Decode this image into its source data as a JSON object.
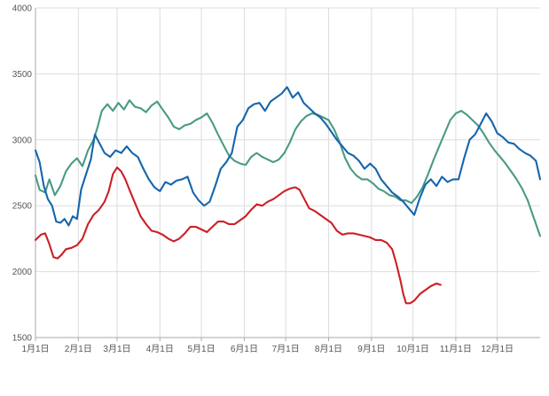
{
  "chart_data": {
    "type": "line",
    "title": "",
    "xlabel": "",
    "ylabel": "",
    "xlim": [
      0,
      365
    ],
    "ylim": [
      1500,
      4000
    ],
    "y_ticks": [
      1500,
      2000,
      2500,
      3000,
      3500,
      4000
    ],
    "y_tick_labels": [
      "1500",
      "2000",
      "2500",
      "3000",
      "3500",
      "4000"
    ],
    "x_ticks": [
      0,
      31,
      59,
      90,
      120,
      151,
      181,
      212,
      243,
      273,
      304,
      334
    ],
    "x_tick_labels": [
      "1月1日",
      "2月1日",
      "3月1日",
      "4月1日",
      "5月1日",
      "6月1日",
      "7月1日",
      "8月1日",
      "9月1日",
      "10月1日",
      "11月1日",
      "12月1日"
    ],
    "grid": true,
    "legend": "none",
    "series": [
      {
        "color": "#4a9a85",
        "points": [
          [
            0,
            2730
          ],
          [
            3,
            2620
          ],
          [
            7,
            2600
          ],
          [
            10,
            2700
          ],
          [
            14,
            2580
          ],
          [
            18,
            2650
          ],
          [
            22,
            2760
          ],
          [
            26,
            2820
          ],
          [
            30,
            2860
          ],
          [
            34,
            2800
          ],
          [
            38,
            2920
          ],
          [
            42,
            3000
          ],
          [
            45,
            3100
          ],
          [
            48,
            3220
          ],
          [
            52,
            3270
          ],
          [
            56,
            3220
          ],
          [
            60,
            3280
          ],
          [
            64,
            3230
          ],
          [
            68,
            3300
          ],
          [
            72,
            3250
          ],
          [
            76,
            3240
          ],
          [
            80,
            3210
          ],
          [
            84,
            3260
          ],
          [
            88,
            3290
          ],
          [
            92,
            3230
          ],
          [
            96,
            3170
          ],
          [
            100,
            3100
          ],
          [
            104,
            3080
          ],
          [
            108,
            3110
          ],
          [
            112,
            3120
          ],
          [
            116,
            3150
          ],
          [
            120,
            3170
          ],
          [
            124,
            3200
          ],
          [
            128,
            3130
          ],
          [
            132,
            3040
          ],
          [
            136,
            2960
          ],
          [
            140,
            2880
          ],
          [
            144,
            2840
          ],
          [
            148,
            2820
          ],
          [
            152,
            2810
          ],
          [
            156,
            2870
          ],
          [
            160,
            2900
          ],
          [
            164,
            2870
          ],
          [
            168,
            2850
          ],
          [
            172,
            2830
          ],
          [
            176,
            2850
          ],
          [
            180,
            2900
          ],
          [
            184,
            2980
          ],
          [
            188,
            3080
          ],
          [
            192,
            3140
          ],
          [
            196,
            3180
          ],
          [
            200,
            3200
          ],
          [
            204,
            3190
          ],
          [
            208,
            3170
          ],
          [
            212,
            3150
          ],
          [
            216,
            3080
          ],
          [
            220,
            2980
          ],
          [
            224,
            2860
          ],
          [
            228,
            2780
          ],
          [
            232,
            2730
          ],
          [
            236,
            2700
          ],
          [
            240,
            2700
          ],
          [
            244,
            2670
          ],
          [
            248,
            2630
          ],
          [
            252,
            2610
          ],
          [
            256,
            2580
          ],
          [
            260,
            2570
          ],
          [
            264,
            2540
          ],
          [
            268,
            2540
          ],
          [
            272,
            2520
          ],
          [
            276,
            2570
          ],
          [
            280,
            2640
          ],
          [
            284,
            2740
          ],
          [
            288,
            2850
          ],
          [
            292,
            2950
          ],
          [
            296,
            3050
          ],
          [
            300,
            3150
          ],
          [
            304,
            3200
          ],
          [
            308,
            3220
          ],
          [
            312,
            3190
          ],
          [
            316,
            3150
          ],
          [
            320,
            3110
          ],
          [
            324,
            3050
          ],
          [
            328,
            2980
          ],
          [
            332,
            2920
          ],
          [
            336,
            2870
          ],
          [
            340,
            2820
          ],
          [
            344,
            2760
          ],
          [
            348,
            2700
          ],
          [
            352,
            2630
          ],
          [
            356,
            2540
          ],
          [
            360,
            2420
          ],
          [
            365,
            2270
          ]
        ]
      },
      {
        "color": "#1565ad",
        "points": [
          [
            0,
            2920
          ],
          [
            3,
            2830
          ],
          [
            6,
            2650
          ],
          [
            9,
            2550
          ],
          [
            12,
            2500
          ],
          [
            15,
            2380
          ],
          [
            18,
            2370
          ],
          [
            21,
            2400
          ],
          [
            24,
            2350
          ],
          [
            27,
            2420
          ],
          [
            30,
            2400
          ],
          [
            33,
            2620
          ],
          [
            36,
            2720
          ],
          [
            40,
            2850
          ],
          [
            43,
            3040
          ],
          [
            46,
            2980
          ],
          [
            50,
            2900
          ],
          [
            54,
            2870
          ],
          [
            58,
            2920
          ],
          [
            62,
            2900
          ],
          [
            66,
            2950
          ],
          [
            70,
            2900
          ],
          [
            74,
            2870
          ],
          [
            78,
            2780
          ],
          [
            82,
            2700
          ],
          [
            86,
            2640
          ],
          [
            90,
            2610
          ],
          [
            94,
            2680
          ],
          [
            98,
            2660
          ],
          [
            102,
            2690
          ],
          [
            106,
            2700
          ],
          [
            110,
            2720
          ],
          [
            114,
            2600
          ],
          [
            118,
            2540
          ],
          [
            122,
            2500
          ],
          [
            126,
            2530
          ],
          [
            130,
            2650
          ],
          [
            134,
            2780
          ],
          [
            138,
            2830
          ],
          [
            142,
            2900
          ],
          [
            146,
            3100
          ],
          [
            150,
            3150
          ],
          [
            154,
            3240
          ],
          [
            158,
            3270
          ],
          [
            162,
            3280
          ],
          [
            166,
            3220
          ],
          [
            170,
            3290
          ],
          [
            174,
            3320
          ],
          [
            178,
            3350
          ],
          [
            182,
            3400
          ],
          [
            186,
            3320
          ],
          [
            190,
            3360
          ],
          [
            194,
            3280
          ],
          [
            198,
            3240
          ],
          [
            202,
            3200
          ],
          [
            206,
            3170
          ],
          [
            210,
            3120
          ],
          [
            214,
            3060
          ],
          [
            218,
            3000
          ],
          [
            222,
            2950
          ],
          [
            226,
            2900
          ],
          [
            230,
            2880
          ],
          [
            234,
            2840
          ],
          [
            238,
            2780
          ],
          [
            242,
            2820
          ],
          [
            246,
            2780
          ],
          [
            250,
            2700
          ],
          [
            254,
            2650
          ],
          [
            258,
            2600
          ],
          [
            262,
            2570
          ],
          [
            266,
            2530
          ],
          [
            270,
            2480
          ],
          [
            274,
            2430
          ],
          [
            278,
            2560
          ],
          [
            282,
            2660
          ],
          [
            286,
            2700
          ],
          [
            290,
            2650
          ],
          [
            294,
            2720
          ],
          [
            298,
            2680
          ],
          [
            302,
            2700
          ],
          [
            306,
            2700
          ],
          [
            310,
            2860
          ],
          [
            314,
            3000
          ],
          [
            318,
            3040
          ],
          [
            322,
            3120
          ],
          [
            326,
            3200
          ],
          [
            330,
            3140
          ],
          [
            334,
            3050
          ],
          [
            338,
            3020
          ],
          [
            342,
            2980
          ],
          [
            346,
            2970
          ],
          [
            350,
            2930
          ],
          [
            354,
            2900
          ],
          [
            358,
            2880
          ],
          [
            362,
            2840
          ],
          [
            365,
            2700
          ]
        ]
      },
      {
        "color": "#cc1f26",
        "points": [
          [
            0,
            2240
          ],
          [
            4,
            2280
          ],
          [
            7,
            2290
          ],
          [
            10,
            2210
          ],
          [
            13,
            2110
          ],
          [
            16,
            2100
          ],
          [
            19,
            2130
          ],
          [
            22,
            2170
          ],
          [
            26,
            2180
          ],
          [
            30,
            2200
          ],
          [
            34,
            2250
          ],
          [
            38,
            2360
          ],
          [
            42,
            2430
          ],
          [
            46,
            2470
          ],
          [
            50,
            2530
          ],
          [
            53,
            2610
          ],
          [
            56,
            2740
          ],
          [
            59,
            2790
          ],
          [
            62,
            2760
          ],
          [
            65,
            2700
          ],
          [
            68,
            2620
          ],
          [
            72,
            2520
          ],
          [
            76,
            2420
          ],
          [
            80,
            2360
          ],
          [
            84,
            2310
          ],
          [
            88,
            2300
          ],
          [
            92,
            2280
          ],
          [
            96,
            2250
          ],
          [
            100,
            2230
          ],
          [
            104,
            2250
          ],
          [
            108,
            2290
          ],
          [
            112,
            2340
          ],
          [
            116,
            2340
          ],
          [
            120,
            2320
          ],
          [
            124,
            2300
          ],
          [
            128,
            2340
          ],
          [
            132,
            2380
          ],
          [
            136,
            2380
          ],
          [
            140,
            2360
          ],
          [
            144,
            2360
          ],
          [
            148,
            2390
          ],
          [
            152,
            2420
          ],
          [
            156,
            2470
          ],
          [
            160,
            2510
          ],
          [
            164,
            2500
          ],
          [
            168,
            2530
          ],
          [
            172,
            2550
          ],
          [
            176,
            2580
          ],
          [
            180,
            2610
          ],
          [
            184,
            2630
          ],
          [
            188,
            2640
          ],
          [
            191,
            2620
          ],
          [
            194,
            2560
          ],
          [
            198,
            2480
          ],
          [
            202,
            2460
          ],
          [
            206,
            2430
          ],
          [
            210,
            2400
          ],
          [
            214,
            2370
          ],
          [
            218,
            2310
          ],
          [
            222,
            2280
          ],
          [
            226,
            2290
          ],
          [
            230,
            2290
          ],
          [
            234,
            2280
          ],
          [
            238,
            2270
          ],
          [
            242,
            2260
          ],
          [
            246,
            2240
          ],
          [
            250,
            2240
          ],
          [
            254,
            2220
          ],
          [
            258,
            2170
          ],
          [
            261,
            2060
          ],
          [
            264,
            1930
          ],
          [
            266,
            1830
          ],
          [
            268,
            1760
          ],
          [
            271,
            1760
          ],
          [
            274,
            1780
          ],
          [
            278,
            1830
          ],
          [
            282,
            1860
          ],
          [
            286,
            1890
          ],
          [
            290,
            1910
          ],
          [
            293,
            1900
          ]
        ]
      }
    ]
  }
}
